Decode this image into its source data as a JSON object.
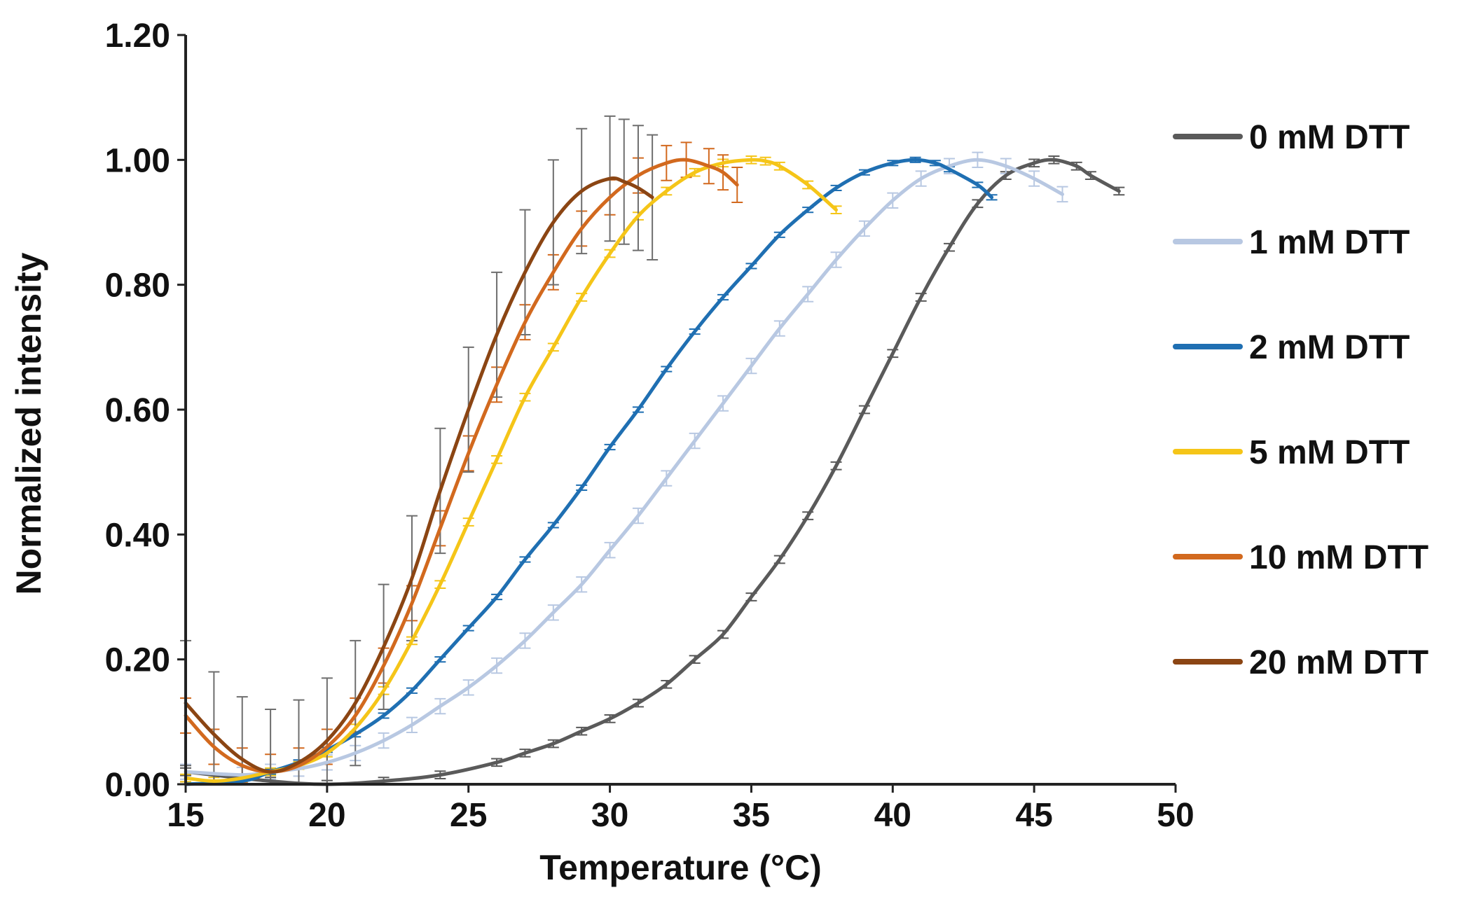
{
  "chart_data": {
    "type": "line",
    "title": "",
    "xlabel": "Temperature (°C)",
    "ylabel": "Normalized intensity",
    "xlim": [
      15,
      50
    ],
    "ylim": [
      0,
      1.2
    ],
    "xticks": [
      15,
      20,
      25,
      30,
      35,
      40,
      45,
      50
    ],
    "yticks": [
      0,
      0.2,
      0.4,
      0.6,
      0.8,
      1.0,
      1.2
    ],
    "x_tick_labels": [
      "15",
      "20",
      "25",
      "30",
      "35",
      "40",
      "45",
      "50"
    ],
    "y_tick_labels": [
      "0.00",
      "0.20",
      "0.40",
      "0.60",
      "0.80",
      "1.00",
      "1.20"
    ],
    "legend_position": "right",
    "series": [
      {
        "name": "0 mM DTT",
        "color": "#5a5a5a",
        "x": [
          15,
          18,
          20,
          22,
          24,
          26,
          27,
          28,
          29,
          30,
          31,
          32,
          33,
          34,
          35,
          36,
          37,
          38,
          39,
          40,
          41,
          42,
          43,
          44,
          45,
          45.7,
          46.5,
          47,
          48
        ],
        "y": [
          0.02,
          0.005,
          0.0,
          0.005,
          0.015,
          0.035,
          0.05,
          0.065,
          0.085,
          0.105,
          0.13,
          0.16,
          0.2,
          0.24,
          0.3,
          0.36,
          0.43,
          0.51,
          0.6,
          0.69,
          0.78,
          0.86,
          0.93,
          0.975,
          0.995,
          1.0,
          0.99,
          0.975,
          0.95
        ],
        "error": 0.006
      },
      {
        "name": "1 mM DTT",
        "color": "#b8c8e2",
        "x": [
          15,
          17,
          18,
          19,
          20,
          21,
          22,
          23,
          24,
          25,
          26,
          27,
          28,
          29,
          30,
          31,
          32,
          33,
          34,
          35,
          36,
          37,
          38,
          39,
          40,
          41,
          42,
          43,
          44,
          45,
          46
        ],
        "y": [
          0.02,
          0.015,
          0.02,
          0.025,
          0.035,
          0.05,
          0.07,
          0.095,
          0.125,
          0.155,
          0.19,
          0.23,
          0.275,
          0.32,
          0.375,
          0.43,
          0.49,
          0.55,
          0.61,
          0.67,
          0.73,
          0.785,
          0.84,
          0.89,
          0.935,
          0.97,
          0.99,
          1.0,
          0.99,
          0.97,
          0.945
        ],
        "error": 0.012
      },
      {
        "name": "2 mM DTT",
        "color": "#1f6fb2",
        "x": [
          15,
          17,
          18,
          19,
          20,
          21,
          22,
          23,
          24,
          25,
          26,
          27,
          28,
          29,
          30,
          31,
          32,
          33,
          34,
          35,
          36,
          37,
          38,
          39,
          40,
          40.8,
          41.5,
          42,
          43,
          43.5
        ],
        "y": [
          0.0,
          0.005,
          0.02,
          0.035,
          0.055,
          0.08,
          0.11,
          0.15,
          0.2,
          0.25,
          0.3,
          0.36,
          0.415,
          0.475,
          0.54,
          0.6,
          0.665,
          0.725,
          0.78,
          0.83,
          0.88,
          0.92,
          0.955,
          0.98,
          0.995,
          1.0,
          0.995,
          0.985,
          0.96,
          0.94
        ],
        "error": 0.004
      },
      {
        "name": "5 mM DTT",
        "color": "#f5c518",
        "x": [
          15,
          16,
          17,
          18,
          19,
          20,
          21,
          22,
          23,
          24,
          25,
          26,
          27,
          28,
          29,
          30,
          31,
          32,
          33,
          34,
          35,
          35.5,
          36,
          37,
          38
        ],
        "y": [
          0.01,
          0.005,
          0.01,
          0.02,
          0.03,
          0.05,
          0.09,
          0.15,
          0.23,
          0.32,
          0.42,
          0.52,
          0.62,
          0.7,
          0.78,
          0.85,
          0.91,
          0.95,
          0.98,
          0.995,
          1.0,
          0.998,
          0.99,
          0.96,
          0.92
        ],
        "error": 0.006
      },
      {
        "name": "10 mM DTT",
        "color": "#d2691e",
        "x": [
          15,
          16,
          17,
          18,
          19,
          20,
          21,
          22,
          23,
          24,
          25,
          26,
          27,
          28,
          29,
          30,
          31,
          32,
          32.7,
          33.5,
          34,
          34.5
        ],
        "y": [
          0.11,
          0.06,
          0.03,
          0.02,
          0.03,
          0.06,
          0.11,
          0.19,
          0.29,
          0.41,
          0.53,
          0.64,
          0.74,
          0.82,
          0.89,
          0.94,
          0.975,
          0.995,
          1.0,
          0.99,
          0.98,
          0.96
        ],
        "error": 0.028
      },
      {
        "name": "20 mM DTT",
        "color": "#8b4513",
        "x": [
          15,
          16,
          17,
          18,
          19,
          20,
          21,
          22,
          23,
          24,
          25,
          26,
          27,
          28,
          29,
          30,
          30.5,
          31,
          31.5
        ],
        "y": [
          0.13,
          0.08,
          0.04,
          0.02,
          0.035,
          0.07,
          0.13,
          0.22,
          0.33,
          0.47,
          0.6,
          0.72,
          0.82,
          0.9,
          0.95,
          0.97,
          0.965,
          0.955,
          0.94
        ],
        "error": 0.1
      }
    ]
  }
}
